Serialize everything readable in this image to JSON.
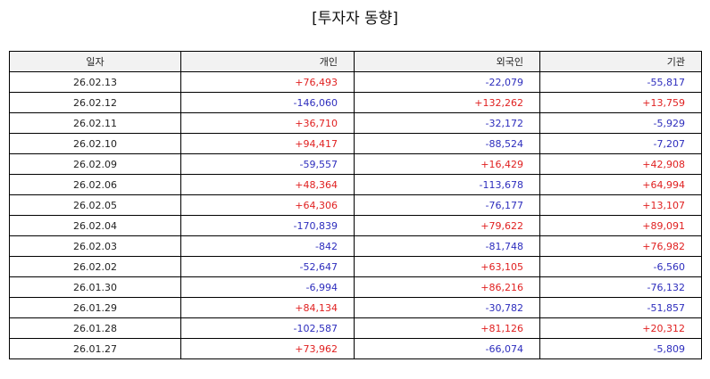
{
  "title": "[투자자 동향]",
  "colors": {
    "positive": "#e02020",
    "negative": "#2d2dbd",
    "header_bg": "#f2f2f2"
  },
  "table": {
    "headers": [
      "일자",
      "개인",
      "외국인",
      "기관"
    ],
    "rows": [
      [
        "26.02.13",
        "+76,493",
        "-22,079",
        "-55,817"
      ],
      [
        "26.02.12",
        "-146,060",
        "+132,262",
        "+13,759"
      ],
      [
        "26.02.11",
        "+36,710",
        "-32,172",
        "-5,929"
      ],
      [
        "26.02.10",
        "+94,417",
        "-88,524",
        "-7,207"
      ],
      [
        "26.02.09",
        "-59,557",
        "+16,429",
        "+42,908"
      ],
      [
        "26.02.06",
        "+48,364",
        "-113,678",
        "+64,994"
      ],
      [
        "26.02.05",
        "+64,306",
        "-76,177",
        "+13,107"
      ],
      [
        "26.02.04",
        "-170,839",
        "+79,622",
        "+89,091"
      ],
      [
        "26.02.03",
        "-842",
        "-81,748",
        "+76,982"
      ],
      [
        "26.02.02",
        "-52,647",
        "+63,105",
        "-6,560"
      ],
      [
        "26.01.30",
        "-6,994",
        "+86,216",
        "-76,132"
      ],
      [
        "26.01.29",
        "+84,134",
        "-30,782",
        "-51,857"
      ],
      [
        "26.01.28",
        "-102,587",
        "+81,126",
        "+20,312"
      ],
      [
        "26.01.27",
        "+73,962",
        "-66,074",
        "-5,809"
      ]
    ]
  }
}
